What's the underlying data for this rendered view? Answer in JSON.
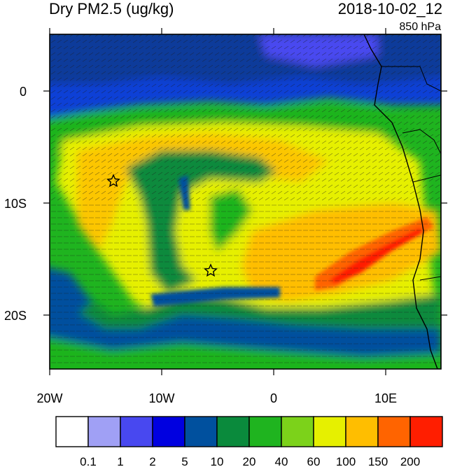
{
  "header": {
    "title": "Dry PM2.5 (ug/kg)",
    "datetime": "2018-10-02_12",
    "level": "850 hPa"
  },
  "axes": {
    "x_ticks": [
      "20W",
      "10W",
      "0",
      "10E"
    ],
    "y_ticks": [
      "0",
      "10S",
      "20S"
    ]
  },
  "markers": [
    {
      "name": "station-1",
      "symbol": "star"
    },
    {
      "name": "station-2",
      "symbol": "star"
    }
  ],
  "colorbar": {
    "labels": [
      "0.1",
      "1",
      "2",
      "5",
      "10",
      "20",
      "40",
      "60",
      "100",
      "150",
      "200"
    ],
    "colors": [
      "#ffffff",
      "#a0a0f5",
      "#4848f0",
      "#0000e0",
      "#00509e",
      "#0a8a3c",
      "#1fb41f",
      "#7cd21a",
      "#e6f000",
      "#ffbe00",
      "#ff6400",
      "#ff1e00"
    ]
  },
  "palette": {
    "ocean_far": "#0a3fd6",
    "ocean_deep": "#0d3b9a",
    "plume_core": "#ff2a00"
  }
}
